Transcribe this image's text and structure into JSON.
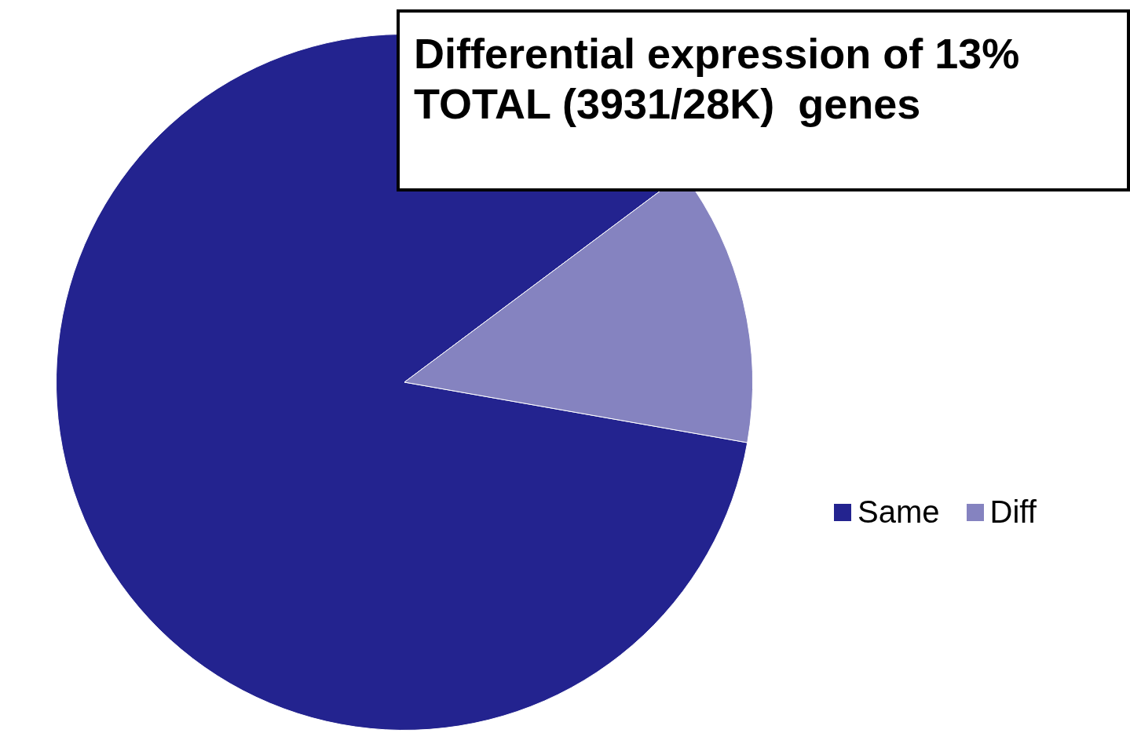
{
  "chart_data": {
    "type": "pie",
    "title": "Differential expression of 13% TOTAL (3931/28K)  genes",
    "categories": [
      "Same",
      "Diff"
    ],
    "values": [
      87,
      13
    ],
    "colors": [
      "#23238f",
      "#8583c0"
    ],
    "legend": "right"
  }
}
